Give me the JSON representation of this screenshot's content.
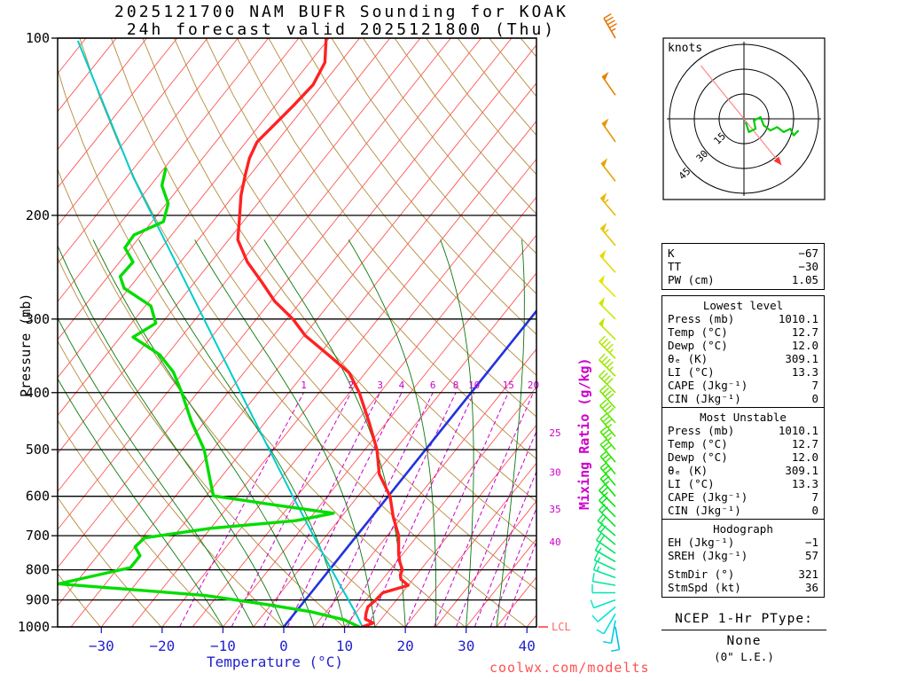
{
  "header": {
    "line1": "2025121700 NAM BUFR Sounding for KOAK",
    "line2": "24h forecast valid 2025121800 (Thu)"
  },
  "watermark": "coolwx.com/modelts",
  "chart_data": {
    "type": "line",
    "subtype": "skew-t-log-p",
    "title": "2025121700 NAM BUFR Sounding for KOAK, 24h forecast valid 2025121800 (Thu)",
    "x_axis": {
      "label": "Temperature (°C)",
      "ticks": [
        -30,
        -20,
        -10,
        0,
        10,
        20,
        30,
        40
      ]
    },
    "y_axis": {
      "label": "Pressure (mb)",
      "scale": "log",
      "ticks": [
        100,
        200,
        300,
        400,
        500,
        600,
        700,
        800,
        900,
        1000
      ]
    },
    "mixing_ratio": {
      "label": "Mixing Ratio (g/kg)",
      "values": [
        1,
        2,
        3,
        4,
        6,
        8,
        10,
        15,
        20,
        25,
        30,
        35,
        40
      ]
    },
    "lcl": {
      "label": "LCL",
      "pressure": 1000
    },
    "reference_lines": {
      "isotherm_step_c": 5,
      "dry_adiabat_step_k": 10,
      "freezing_isotherm_c": 0
    },
    "series": [
      {
        "name": "wetbulb",
        "color": "#00cccc",
        "width": 2,
        "points": [
          [
            1010,
            13.5
          ],
          [
            942,
            9.7
          ],
          [
            788,
            -0.5
          ],
          [
            600,
            -15.7
          ],
          [
            425,
            -34.6
          ],
          [
            280,
            -57.4
          ],
          [
            172,
            -84
          ],
          [
            101,
            -111
          ]
        ]
      },
      {
        "name": "dewpoint",
        "color": "#00dd00",
        "width": 3.4,
        "points": [
          [
            1010,
            12.0
          ],
          [
            1000,
            12.4
          ],
          [
            973,
            9.1
          ],
          [
            942,
            2.4
          ],
          [
            916,
            -5.8
          ],
          [
            884,
            -17.2
          ],
          [
            845,
            -42.7
          ],
          [
            793,
            -33.0
          ],
          [
            757,
            -33.0
          ],
          [
            731,
            -35.0
          ],
          [
            706,
            -34.6
          ],
          [
            680,
            -25.0
          ],
          [
            660,
            -12.0
          ],
          [
            641,
            -6.8
          ],
          [
            620,
            -18.0
          ],
          [
            599,
            -28.8
          ],
          [
            557,
            -31.9
          ],
          [
            500,
            -36.4
          ],
          [
            448,
            -42.2
          ],
          [
            400,
            -47.6
          ],
          [
            369,
            -51.7
          ],
          [
            345,
            -56.2
          ],
          [
            322,
            -62.9
          ],
          [
            305,
            -61.0
          ],
          [
            285,
            -64.1
          ],
          [
            266,
            -70.8
          ],
          [
            254,
            -73.0
          ],
          [
            240,
            -72.8
          ],
          [
            227,
            -76.0
          ],
          [
            216,
            -76.2
          ],
          [
            205,
            -73.1
          ],
          [
            191,
            -74.7
          ],
          [
            178,
            -78.1
          ],
          [
            166,
            -79.8
          ]
        ]
      },
      {
        "name": "temperature",
        "color": "#ff2222",
        "width": 3.4,
        "points": [
          [
            1010,
            12.7
          ],
          [
            1000,
            12.9
          ],
          [
            985,
            14.2
          ],
          [
            970,
            12.4
          ],
          [
            950,
            11.8
          ],
          [
            925,
            11.2
          ],
          [
            900,
            11.6
          ],
          [
            875,
            11.8
          ],
          [
            850,
            15.0
          ],
          [
            830,
            13.0
          ],
          [
            815,
            12.3
          ],
          [
            800,
            12.0
          ],
          [
            775,
            10.5
          ],
          [
            750,
            9.2
          ],
          [
            700,
            6.9
          ],
          [
            650,
            3.5
          ],
          [
            600,
            0.3
          ],
          [
            550,
            -4.4
          ],
          [
            500,
            -8.0
          ],
          [
            450,
            -12.8
          ],
          [
            400,
            -18.4
          ],
          [
            370,
            -22.7
          ],
          [
            345,
            -28.5
          ],
          [
            320,
            -34.8
          ],
          [
            300,
            -39.0
          ],
          [
            280,
            -44.3
          ],
          [
            260,
            -48.9
          ],
          [
            240,
            -54.0
          ],
          [
            220,
            -58.5
          ],
          [
            200,
            -61.4
          ],
          [
            185,
            -63.8
          ],
          [
            170,
            -65.9
          ],
          [
            160,
            -67.3
          ],
          [
            150,
            -68.2
          ],
          [
            140,
            -67.6
          ],
          [
            130,
            -67.0
          ],
          [
            120,
            -66.5
          ],
          [
            110,
            -67.5
          ],
          [
            100,
            -70.5
          ]
        ]
      }
    ],
    "wind_barbs": [
      [
        1000,
        8,
        170
      ],
      [
        975,
        10,
        190
      ],
      [
        950,
        12,
        210
      ],
      [
        925,
        12,
        230
      ],
      [
        900,
        10,
        250
      ],
      [
        875,
        10,
        270
      ],
      [
        850,
        12,
        280
      ],
      [
        825,
        14,
        290
      ],
      [
        800,
        15,
        295
      ],
      [
        775,
        15,
        300
      ],
      [
        750,
        18,
        305
      ],
      [
        725,
        20,
        310
      ],
      [
        700,
        20,
        310
      ],
      [
        675,
        22,
        315
      ],
      [
        650,
        22,
        315
      ],
      [
        625,
        25,
        315
      ],
      [
        600,
        25,
        320
      ],
      [
        575,
        28,
        320
      ],
      [
        550,
        30,
        320
      ],
      [
        525,
        32,
        320
      ],
      [
        500,
        35,
        320
      ],
      [
        475,
        35,
        320
      ],
      [
        450,
        38,
        318
      ],
      [
        425,
        40,
        318
      ],
      [
        400,
        42,
        315
      ],
      [
        375,
        45,
        315
      ],
      [
        350,
        45,
        315
      ],
      [
        325,
        48,
        315
      ],
      [
        300,
        50,
        315
      ],
      [
        275,
        50,
        315
      ],
      [
        250,
        52,
        318
      ],
      [
        225,
        55,
        320
      ],
      [
        200,
        55,
        320
      ],
      [
        175,
        52,
        322
      ],
      [
        150,
        50,
        325
      ],
      [
        125,
        48,
        325
      ],
      [
        100,
        45,
        330
      ]
    ]
  },
  "hodograph": {
    "unit_label": "knots",
    "rings": [
      15,
      30,
      45
    ],
    "trace_uv": [
      [
        1,
        -2
      ],
      [
        3,
        -8
      ],
      [
        7,
        -6
      ],
      [
        6,
        -1
      ],
      [
        10,
        1
      ],
      [
        12,
        -4
      ],
      [
        16,
        -7
      ],
      [
        20,
        -5
      ],
      [
        24,
        -8
      ],
      [
        28,
        -6
      ],
      [
        30,
        -10
      ],
      [
        33,
        -7
      ]
    ],
    "storm_motion": {
      "dir": 321,
      "spd": 36
    }
  },
  "stats": {
    "indices": {
      "rows": [
        [
          "K",
          "−67"
        ],
        [
          "TT",
          "−30"
        ],
        [
          "PW (cm)",
          "1.05"
        ]
      ]
    },
    "lowest": {
      "title": "Lowest level",
      "rows": [
        [
          "Press (mb)",
          "1010.1"
        ],
        [
          "Temp (°C)",
          "12.7"
        ],
        [
          "Dewp (°C)",
          "12.0"
        ],
        [
          "θₑ (K)",
          "309.1"
        ],
        [
          "LI (°C)",
          "13.3"
        ],
        [
          "CAPE (Jkg⁻¹)",
          "7"
        ],
        [
          "CIN (Jkg⁻¹)",
          "0"
        ]
      ]
    },
    "most_unstable": {
      "title": "Most Unstable",
      "rows": [
        [
          "Press (mb)",
          "1010.1"
        ],
        [
          "Temp (°C)",
          "12.7"
        ],
        [
          "Dewp (°C)",
          "12.0"
        ],
        [
          "θₑ (K)",
          "309.1"
        ],
        [
          "LI (°C)",
          "13.3"
        ],
        [
          "CAPE (Jkg⁻¹)",
          "7"
        ],
        [
          "CIN (Jkg⁻¹)",
          "0"
        ]
      ]
    },
    "hodo": {
      "title": "Hodograph",
      "rows": [
        [
          "EH (Jkg⁻¹)",
          "−1"
        ],
        [
          "SREH (Jkg⁻¹)",
          "57"
        ]
      ],
      "rows2": [
        [
          "StmDir (°)",
          "321"
        ],
        [
          "StmSpd (kt)",
          "36"
        ]
      ]
    }
  },
  "ptype": {
    "heading": "NCEP 1-Hr PType:",
    "value": "None",
    "note": "(0\" L.E.)"
  }
}
